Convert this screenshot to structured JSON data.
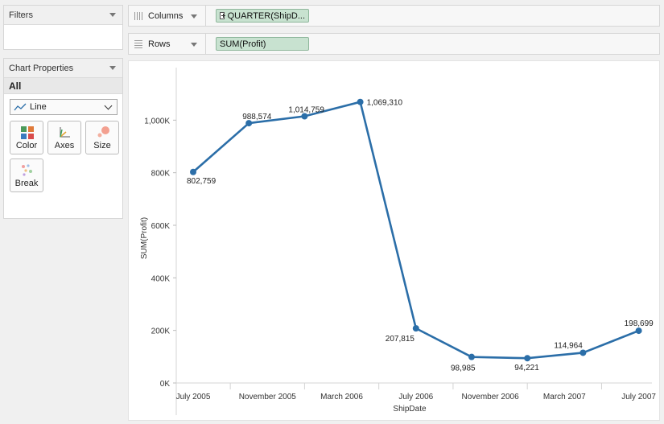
{
  "filters": {
    "title": "Filters"
  },
  "chart_properties": {
    "title": "Chart Properties",
    "all_label": "All",
    "mark_type": "Line",
    "buttons": {
      "color": "Color",
      "axes": "Axes",
      "size": "Size",
      "break": "Break"
    }
  },
  "shelves": {
    "columns": {
      "label": "Columns",
      "pill": "QUARTER(ShipD..."
    },
    "rows": {
      "label": "Rows",
      "pill": "SUM(Profit)"
    }
  },
  "colors": {
    "line": "#2b6ea8",
    "pill_bg": "#c8e2d0"
  },
  "chart_data": {
    "type": "line",
    "title": "",
    "xlabel": "ShipDate",
    "ylabel": "SUM(Profit)",
    "ylim": [
      0,
      1200000
    ],
    "yticks": [
      0,
      200000,
      400000,
      600000,
      800000,
      1000000
    ],
    "ytick_labels": [
      "0K",
      "200K",
      "400K",
      "600K",
      "800K",
      "1,000K"
    ],
    "xtick_labels": [
      "July 2005",
      "November 2005",
      "March 2006",
      "July 2006",
      "November 2006",
      "March 2007",
      "July 2007"
    ],
    "series": [
      {
        "values": [
          802759,
          988574,
          1014759,
          1069310,
          207815,
          98985,
          94221,
          114964,
          198699
        ],
        "labels": [
          "802,759",
          "988,574",
          "1,014,759",
          "1,069,310",
          "207,815",
          "98,985",
          "94,221",
          "114,964",
          "198,699"
        ]
      }
    ]
  }
}
